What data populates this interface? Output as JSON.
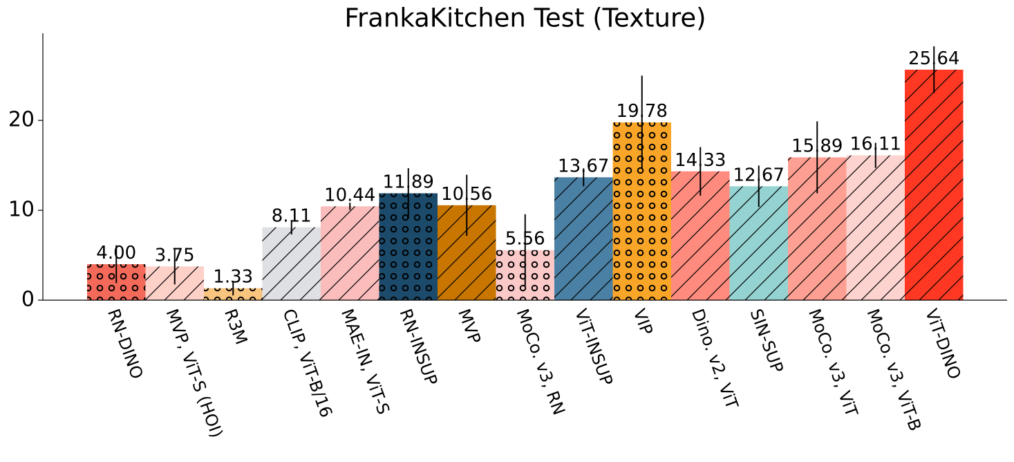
{
  "chart_data": {
    "type": "bar",
    "title": "FrankaKitchen Test (Texture)",
    "categories": [
      "RN-DINO",
      "MVP, ViT-S (HOI)",
      "R3M",
      "CLIP, ViT-B/16",
      "MAE-IN, ViT-S",
      "RN-INSUP",
      "MVP",
      "MoCo. v3, RN",
      "ViT-INSUP",
      "VIP",
      "Dino. v2, ViT",
      "SIN-SUP",
      "MoCo. v3, ViT",
      "MoCo. v3, ViT-B",
      "ViT-DINO"
    ],
    "values": [
      4.0,
      3.75,
      1.33,
      8.11,
      10.44,
      11.89,
      10.56,
      5.56,
      13.67,
      19.78,
      14.33,
      12.67,
      15.89,
      16.11,
      25.64
    ],
    "value_labels": [
      "4.00",
      "3.75",
      "1.33",
      "8.11",
      "10.44",
      "11.89",
      "10.56",
      "5.56",
      "13.67",
      "19.78",
      "14.33",
      "12.67",
      "15.89",
      "16.11",
      "25.64"
    ],
    "errors": [
      2.1,
      2.0,
      0.8,
      0.8,
      0.4,
      2.8,
      3.4,
      4.0,
      1.0,
      5.2,
      2.7,
      2.3,
      4.0,
      1.4,
      2.6
    ],
    "colors": [
      "#f46a5a",
      "#fdd0c8",
      "#f9c47e",
      "#dfe0e4",
      "#fbbcbc",
      "#1b4a6b",
      "#c87600",
      "#fcc9c9",
      "#4a80a3",
      "#f9a528",
      "#fe8b7e",
      "#95d3d2",
      "#fda093",
      "#fdd3cf",
      "#ff3823"
    ],
    "hatches": [
      "o",
      "/",
      "o",
      "/",
      "/",
      "o",
      "/",
      "o",
      "/",
      "o",
      "/",
      "/",
      "/",
      "/",
      "/"
    ],
    "ylim": [
      0,
      29.7
    ],
    "yticks": [
      0,
      10,
      20
    ]
  }
}
